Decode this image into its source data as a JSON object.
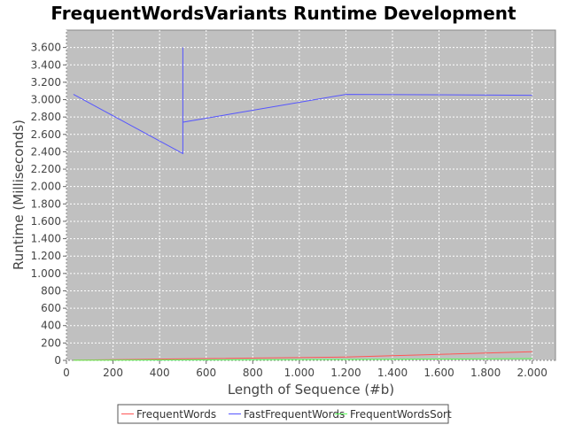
{
  "chart_data": {
    "type": "line",
    "title": "FrequentWordsVariants Runtime Development",
    "xlabel": "Length of Sequence (#b)",
    "ylabel": "Runtime (Milliseconds)",
    "xlim": [
      0,
      2100
    ],
    "ylim": [
      0,
      3800
    ],
    "xticks": [
      0,
      200,
      400,
      600,
      800,
      1000,
      1200,
      1400,
      1600,
      1800,
      2000
    ],
    "xtick_labels": [
      "0",
      "200",
      "400",
      "600",
      "800",
      "1.000",
      "1.200",
      "1.400",
      "1.600",
      "1.800",
      "2.000"
    ],
    "yticks": [
      0,
      200,
      400,
      600,
      800,
      1000,
      1200,
      1400,
      1600,
      1800,
      2000,
      2200,
      2400,
      2600,
      2800,
      3000,
      3200,
      3400,
      3600
    ],
    "ytick_labels": [
      "0",
      "200",
      "400",
      "600",
      "800",
      "1.000",
      "1.200",
      "1.400",
      "1.600",
      "1.800",
      "2.000",
      "2.200",
      "2.400",
      "2.600",
      "2.800",
      "3.000",
      "3.200",
      "3.400",
      "3.600"
    ],
    "grid": true,
    "legend_position": "bottom",
    "background_color": "#c0c0c0",
    "series": [
      {
        "name": "FrequentWords",
        "color": "#ff5555",
        "x": [
          30,
          500,
          500,
          1200,
          2000
        ],
        "y": [
          2,
          18,
          18,
          38,
          100
        ]
      },
      {
        "name": "FastFrequentWords",
        "color": "#5555ff",
        "x": [
          30,
          500,
          500,
          500,
          1200,
          2000
        ],
        "y": [
          3060,
          2380,
          3600,
          2740,
          3060,
          3050
        ]
      },
      {
        "name": "FrequentWordsSort",
        "color": "#55ff55",
        "x": [
          30,
          500,
          500,
          1200,
          2000
        ],
        "y": [
          1,
          5,
          5,
          10,
          20
        ]
      }
    ]
  }
}
